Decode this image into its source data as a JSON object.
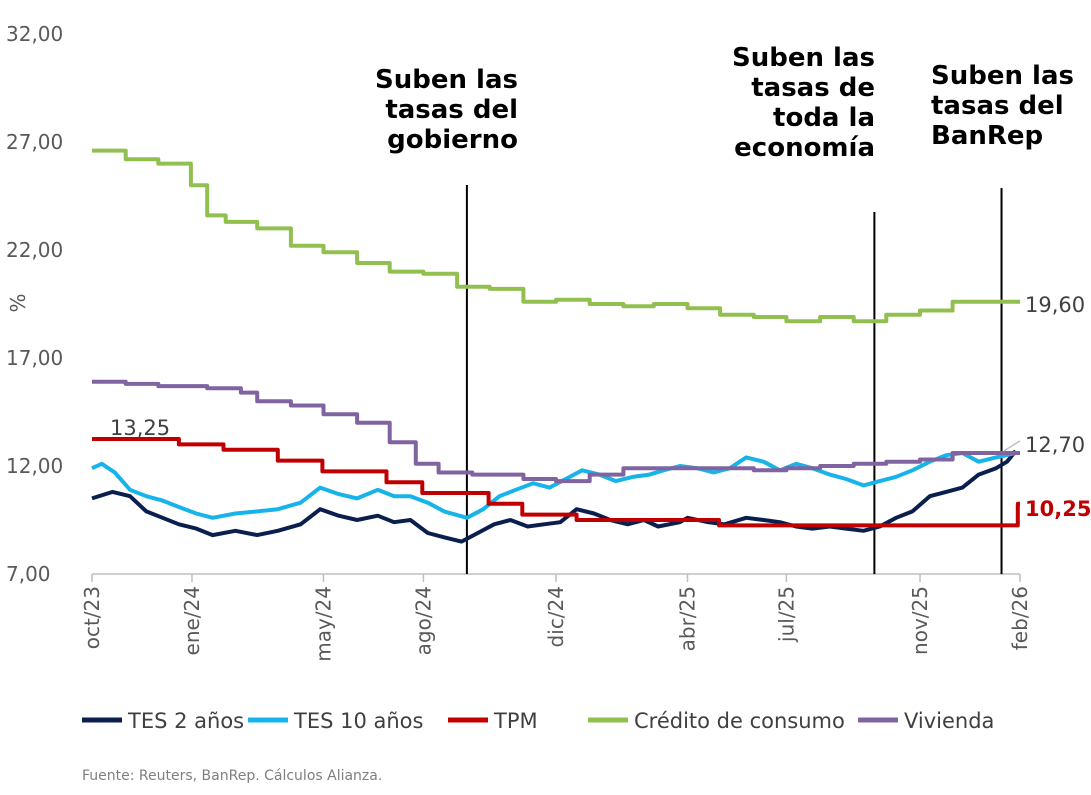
{
  "chart_data": {
    "type": "line",
    "ylabel": "%",
    "ylim": [
      7,
      32
    ],
    "y_ticks": [
      "32,00",
      "27,00",
      "22,00",
      "17,00",
      "12,00",
      "7,00"
    ],
    "y_tick_values": [
      32,
      27,
      22,
      17,
      12,
      7
    ],
    "x_range": [
      "2023-10-01",
      "2026-02-01"
    ],
    "x_ticks": [
      {
        "label": "oct/23",
        "date": "2023-10-01"
      },
      {
        "label": "ene/24",
        "date": "2024-01-01"
      },
      {
        "label": "may/24",
        "date": "2024-05-01"
      },
      {
        "label": "ago/24",
        "date": "2024-08-01"
      },
      {
        "label": "dic/24",
        "date": "2024-12-01"
      },
      {
        "label": "abr/25",
        "date": "2025-04-01"
      },
      {
        "label": "jul/25",
        "date": "2025-07-01"
      },
      {
        "label": "nov/25",
        "date": "2025-11-01"
      },
      {
        "label": "feb/26",
        "date": "2026-02-01"
      }
    ],
    "grid": false,
    "legend_position": "bottom",
    "series": [
      {
        "name": "TES 2 años",
        "color": "#0b1f4f",
        "points": [
          [
            "2023-10-01",
            10.5
          ],
          [
            "2023-10-20",
            10.8
          ],
          [
            "2023-11-05",
            10.6
          ],
          [
            "2023-11-20",
            9.9
          ],
          [
            "2023-12-05",
            9.6
          ],
          [
            "2023-12-20",
            9.3
          ],
          [
            "2024-01-05",
            9.1
          ],
          [
            "2024-01-20",
            8.8
          ],
          [
            "2024-02-10",
            9.0
          ],
          [
            "2024-03-01",
            8.8
          ],
          [
            "2024-03-20",
            9.0
          ],
          [
            "2024-04-10",
            9.3
          ],
          [
            "2024-04-28",
            10.0
          ],
          [
            "2024-05-15",
            9.7
          ],
          [
            "2024-06-01",
            9.5
          ],
          [
            "2024-06-20",
            9.7
          ],
          [
            "2024-07-05",
            9.4
          ],
          [
            "2024-07-20",
            9.5
          ],
          [
            "2024-08-05",
            8.9
          ],
          [
            "2024-08-20",
            8.7
          ],
          [
            "2024-09-05",
            8.5
          ],
          [
            "2024-09-20",
            8.9
          ],
          [
            "2024-10-05",
            9.3
          ],
          [
            "2024-10-20",
            9.5
          ],
          [
            "2024-11-05",
            9.2
          ],
          [
            "2024-11-20",
            9.3
          ],
          [
            "2024-12-05",
            9.4
          ],
          [
            "2024-12-20",
            10.0
          ],
          [
            "2025-01-05",
            9.8
          ],
          [
            "2025-01-20",
            9.5
          ],
          [
            "2025-02-05",
            9.3
          ],
          [
            "2025-02-20",
            9.5
          ],
          [
            "2025-03-05",
            9.2
          ],
          [
            "2025-03-25",
            9.4
          ],
          [
            "2025-04-01",
            9.6
          ],
          [
            "2025-04-20",
            9.4
          ],
          [
            "2025-05-05",
            9.3
          ],
          [
            "2025-05-25",
            9.6
          ],
          [
            "2025-06-10",
            9.5
          ],
          [
            "2025-06-25",
            9.4
          ],
          [
            "2025-07-10",
            9.2
          ],
          [
            "2025-07-25",
            9.1
          ],
          [
            "2025-08-10",
            9.2
          ],
          [
            "2025-08-25",
            9.1
          ],
          [
            "2025-09-10",
            9.0
          ],
          [
            "2025-09-25",
            9.2
          ],
          [
            "2025-10-10",
            9.6
          ],
          [
            "2025-10-25",
            9.9
          ],
          [
            "2025-11-10",
            10.6
          ],
          [
            "2025-11-25",
            10.8
          ],
          [
            "2025-12-10",
            11.0
          ],
          [
            "2025-12-25",
            11.6
          ],
          [
            "2026-01-10",
            11.9
          ],
          [
            "2026-01-20",
            12.2
          ],
          [
            "2026-01-28",
            12.7
          ]
        ]
      },
      {
        "name": "TES 10 años",
        "color": "#16b4e8",
        "points": [
          [
            "2023-10-01",
            11.9
          ],
          [
            "2023-10-10",
            12.1
          ],
          [
            "2023-10-22",
            11.7
          ],
          [
            "2023-11-05",
            10.9
          ],
          [
            "2023-11-20",
            10.6
          ],
          [
            "2023-12-05",
            10.4
          ],
          [
            "2023-12-20",
            10.1
          ],
          [
            "2024-01-05",
            9.8
          ],
          [
            "2024-01-20",
            9.6
          ],
          [
            "2024-02-10",
            9.8
          ],
          [
            "2024-03-01",
            9.9
          ],
          [
            "2024-03-20",
            10.0
          ],
          [
            "2024-04-10",
            10.3
          ],
          [
            "2024-04-28",
            11.0
          ],
          [
            "2024-05-15",
            10.7
          ],
          [
            "2024-06-01",
            10.5
          ],
          [
            "2024-06-20",
            10.9
          ],
          [
            "2024-07-05",
            10.6
          ],
          [
            "2024-07-20",
            10.6
          ],
          [
            "2024-08-05",
            10.3
          ],
          [
            "2024-08-20",
            9.9
          ],
          [
            "2024-09-10",
            9.6
          ],
          [
            "2024-09-25",
            10.0
          ],
          [
            "2024-10-10",
            10.6
          ],
          [
            "2024-10-25",
            10.9
          ],
          [
            "2024-11-10",
            11.2
          ],
          [
            "2024-11-25",
            11.0
          ],
          [
            "2024-12-10",
            11.4
          ],
          [
            "2024-12-25",
            11.8
          ],
          [
            "2025-01-10",
            11.6
          ],
          [
            "2025-01-25",
            11.3
          ],
          [
            "2025-02-10",
            11.5
          ],
          [
            "2025-02-25",
            11.6
          ],
          [
            "2025-03-10",
            11.8
          ],
          [
            "2025-03-25",
            12.0
          ],
          [
            "2025-04-10",
            11.9
          ],
          [
            "2025-04-25",
            11.7
          ],
          [
            "2025-05-10",
            11.9
          ],
          [
            "2025-05-25",
            12.4
          ],
          [
            "2025-06-10",
            12.2
          ],
          [
            "2025-06-25",
            11.8
          ],
          [
            "2025-07-10",
            12.1
          ],
          [
            "2025-07-25",
            11.9
          ],
          [
            "2025-08-10",
            11.6
          ],
          [
            "2025-08-25",
            11.4
          ],
          [
            "2025-09-10",
            11.1
          ],
          [
            "2025-09-25",
            11.3
          ],
          [
            "2025-10-10",
            11.5
          ],
          [
            "2025-10-25",
            11.8
          ],
          [
            "2025-11-10",
            12.2
          ],
          [
            "2025-11-25",
            12.5
          ],
          [
            "2025-12-10",
            12.6
          ],
          [
            "2025-12-25",
            12.2
          ],
          [
            "2026-01-10",
            12.4
          ],
          [
            "2026-01-28",
            12.6
          ]
        ]
      },
      {
        "name": "TPM",
        "color": "#c00000",
        "step": true,
        "points": [
          [
            "2023-10-01",
            13.25
          ],
          [
            "2023-12-20",
            13.0
          ],
          [
            "2024-01-30",
            12.75
          ],
          [
            "2024-03-20",
            12.25
          ],
          [
            "2024-04-30",
            11.75
          ],
          [
            "2024-06-28",
            11.25
          ],
          [
            "2024-07-31",
            10.75
          ],
          [
            "2024-09-30",
            10.25
          ],
          [
            "2024-10-31",
            9.75
          ],
          [
            "2024-12-20",
            9.5
          ],
          [
            "2025-04-30",
            9.25
          ],
          [
            "2026-01-30",
            10.25
          ],
          [
            "2026-02-01",
            10.25
          ]
        ]
      },
      {
        "name": "Crédito de consumo",
        "color": "#92c050",
        "step": true,
        "points": [
          [
            "2023-10-01",
            26.6
          ],
          [
            "2023-11-01",
            26.2
          ],
          [
            "2023-12-01",
            26.0
          ],
          [
            "2023-12-31",
            25.0
          ],
          [
            "2024-01-15",
            23.6
          ],
          [
            "2024-02-01",
            23.3
          ],
          [
            "2024-03-01",
            23.0
          ],
          [
            "2024-04-01",
            22.2
          ],
          [
            "2024-05-01",
            21.9
          ],
          [
            "2024-06-01",
            21.4
          ],
          [
            "2024-07-01",
            21.0
          ],
          [
            "2024-08-01",
            20.9
          ],
          [
            "2024-09-01",
            20.3
          ],
          [
            "2024-10-01",
            20.2
          ],
          [
            "2024-11-01",
            19.6
          ],
          [
            "2024-12-01",
            19.7
          ],
          [
            "2025-01-01",
            19.5
          ],
          [
            "2025-02-01",
            19.4
          ],
          [
            "2025-03-01",
            19.5
          ],
          [
            "2025-04-01",
            19.3
          ],
          [
            "2025-05-01",
            19.0
          ],
          [
            "2025-06-01",
            18.9
          ],
          [
            "2025-07-01",
            18.7
          ],
          [
            "2025-08-01",
            18.9
          ],
          [
            "2025-09-01",
            18.7
          ],
          [
            "2025-10-01",
            19.0
          ],
          [
            "2025-11-01",
            19.2
          ],
          [
            "2025-12-01",
            19.6
          ],
          [
            "2026-02-01",
            19.6
          ]
        ]
      },
      {
        "name": "Vivienda",
        "color": "#8064a2",
        "step": true,
        "points": [
          [
            "2023-10-01",
            15.9
          ],
          [
            "2023-11-01",
            15.8
          ],
          [
            "2023-12-01",
            15.7
          ],
          [
            "2024-01-15",
            15.6
          ],
          [
            "2024-02-15",
            15.4
          ],
          [
            "2024-03-01",
            15.0
          ],
          [
            "2024-04-01",
            14.8
          ],
          [
            "2024-05-01",
            14.4
          ],
          [
            "2024-06-01",
            14.0
          ],
          [
            "2024-07-01",
            13.1
          ],
          [
            "2024-07-25",
            12.1
          ],
          [
            "2024-08-15",
            11.7
          ],
          [
            "2024-09-15",
            11.6
          ],
          [
            "2024-11-01",
            11.4
          ],
          [
            "2024-12-01",
            11.3
          ],
          [
            "2025-01-01",
            11.6
          ],
          [
            "2025-02-01",
            11.9
          ],
          [
            "2025-06-01",
            11.8
          ],
          [
            "2025-07-01",
            11.9
          ],
          [
            "2025-08-01",
            12.0
          ],
          [
            "2025-09-01",
            12.1
          ],
          [
            "2025-10-01",
            12.2
          ],
          [
            "2025-11-01",
            12.3
          ],
          [
            "2025-12-01",
            12.6
          ],
          [
            "2026-02-01",
            12.6
          ]
        ]
      }
    ],
    "event_lines": [
      {
        "date": "2024-09-10",
        "text": [
          "Suben las",
          "tasas del",
          "gobierno"
        ]
      },
      {
        "date": "2025-09-20",
        "text": [
          "Suben las",
          "tasas de",
          "toda la",
          "economía"
        ]
      },
      {
        "date": "2026-01-15",
        "text": [
          "Suben las",
          "tasas del",
          "BanRep"
        ]
      }
    ],
    "annotations": [
      {
        "text": "13,25",
        "series": "TPM"
      },
      {
        "text": "19,60",
        "series": "Crédito de consumo"
      },
      {
        "text": "12,70",
        "series": "TES 2 años"
      },
      {
        "text": "10,25",
        "series": "TPM",
        "bold": true
      }
    ]
  },
  "source": "Fuente: Reuters, BanRep. Cálculos Alianza."
}
